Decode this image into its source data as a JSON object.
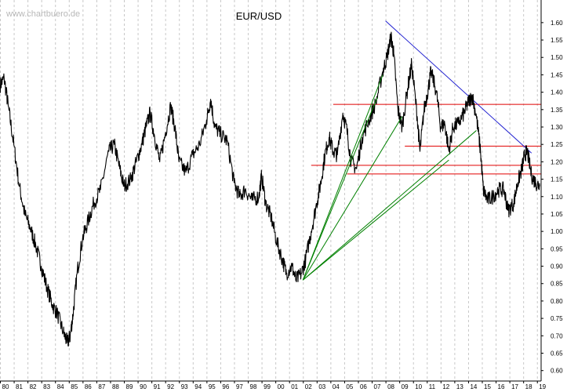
{
  "watermark": "www.chartbuero.de",
  "colors": {
    "background": "#ffffff",
    "price": "#000000",
    "grid": "#c8c8c8",
    "support_resistance": "#e00000",
    "downtrend": "#2020d0",
    "fan": "#008000"
  },
  "chart_data": {
    "type": "line",
    "title": "EUR/USD",
    "xlabel": "",
    "ylabel": "",
    "x_ticks": [
      "80",
      "81",
      "82",
      "83",
      "84",
      "85",
      "86",
      "87",
      "88",
      "89",
      "90",
      "91",
      "92",
      "93",
      "94",
      "95",
      "96",
      "97",
      "98",
      "99",
      "00",
      "01",
      "02",
      "03",
      "04",
      "05",
      "06",
      "07",
      "08",
      "09",
      "10",
      "11",
      "12",
      "13",
      "14",
      "15",
      "16",
      "17",
      "18",
      "19"
    ],
    "y_ticks": [
      "0.60",
      "0.65",
      "0.70",
      "0.75",
      "0.80",
      "0.85",
      "0.90",
      "0.95",
      "1.00",
      "1.05",
      "1.10",
      "1.15",
      "1.20",
      "1.25",
      "1.30",
      "1.35",
      "1.40",
      "1.45",
      "1.50",
      "1.55",
      "1.60"
    ],
    "xlim": [
      1980,
      2019.3
    ],
    "ylim": [
      0.57,
      1.665
    ],
    "grid": true,
    "y_axis_position": "right",
    "series": [
      {
        "x": [
          1980.0,
          1980.3,
          1980.6,
          1981.0,
          1981.4,
          1981.8,
          1982.2,
          1982.6,
          1983.0,
          1983.4,
          1983.8,
          1984.2,
          1984.6,
          1984.9,
          1985.1,
          1985.3,
          1985.6,
          1986.0,
          1986.4,
          1986.8,
          1987.3,
          1987.9,
          1988.3,
          1988.7,
          1989.0,
          1989.5,
          1989.9,
          1990.3,
          1990.6,
          1990.9,
          1991.2,
          1991.6,
          1992.0,
          1992.4,
          1992.7,
          1993.0,
          1993.5,
          1994.0,
          1994.5,
          1995.0,
          1995.3,
          1995.6,
          1996.0,
          1996.5,
          1997.0,
          1997.4,
          1997.8,
          1998.3,
          1998.8,
          1999.0,
          1999.3,
          1999.7,
          2000.1,
          2000.5,
          2000.8,
          2001.2,
          2001.5,
          2001.9,
          2002.2,
          2002.6,
          2003.0,
          2003.3,
          2003.6,
          2003.9,
          2004.2,
          2004.5,
          2004.9,
          2005.2,
          2005.5,
          2005.9,
          2006.3,
          2006.8,
          2007.3,
          2007.8,
          2008.1,
          2008.4,
          2008.6,
          2008.9,
          2009.2,
          2009.6,
          2009.9,
          2010.3,
          2010.5,
          2010.8,
          2011.1,
          2011.3,
          2011.7,
          2012.0,
          2012.3,
          2012.6,
          2012.9,
          2013.3,
          2013.7,
          2014.0,
          2014.3,
          2014.6,
          2014.9,
          2015.1,
          2015.4,
          2015.8,
          2016.2,
          2016.6,
          2016.9,
          2017.3,
          2017.6,
          2017.9,
          2018.1,
          2018.3,
          2018.6,
          2018.9,
          2019.2
        ],
        "values": [
          1.42,
          1.44,
          1.36,
          1.25,
          1.13,
          1.05,
          1.01,
          0.96,
          0.9,
          0.84,
          0.79,
          0.76,
          0.71,
          0.68,
          0.7,
          0.76,
          0.88,
          0.98,
          1.03,
          1.08,
          1.12,
          1.23,
          1.25,
          1.18,
          1.13,
          1.15,
          1.2,
          1.25,
          1.3,
          1.34,
          1.28,
          1.2,
          1.28,
          1.36,
          1.3,
          1.2,
          1.17,
          1.22,
          1.25,
          1.32,
          1.38,
          1.3,
          1.28,
          1.26,
          1.14,
          1.1,
          1.12,
          1.09,
          1.1,
          1.16,
          1.08,
          1.04,
          0.97,
          0.92,
          0.88,
          0.9,
          0.86,
          0.88,
          0.92,
          1.0,
          1.08,
          1.14,
          1.22,
          1.27,
          1.23,
          1.22,
          1.34,
          1.29,
          1.2,
          1.18,
          1.27,
          1.32,
          1.37,
          1.46,
          1.5,
          1.56,
          1.51,
          1.35,
          1.3,
          1.41,
          1.48,
          1.33,
          1.23,
          1.35,
          1.41,
          1.46,
          1.4,
          1.3,
          1.31,
          1.23,
          1.3,
          1.31,
          1.34,
          1.37,
          1.39,
          1.33,
          1.23,
          1.12,
          1.09,
          1.1,
          1.12,
          1.12,
          1.06,
          1.08,
          1.14,
          1.18,
          1.22,
          1.23,
          1.16,
          1.14,
          1.13
        ]
      }
    ],
    "annotations": {
      "horizontal_lines": [
        {
          "y": 1.365,
          "x_from": 2004.2,
          "x_to": 2019.3
        },
        {
          "y": 1.245,
          "x_from": 2009.4,
          "x_to": 2019.3
        },
        {
          "y": 1.19,
          "x_from": 2002.6,
          "x_to": 2019.3
        },
        {
          "y": 1.165,
          "x_from": 2005.2,
          "x_to": 2019.3
        }
      ],
      "trend_lines": [
        {
          "x1": 2008.0,
          "y1": 1.605,
          "x2": 2018.6,
          "y2": 1.225
        }
      ],
      "fan_lines": {
        "origin": [
          2002.0,
          0.86
        ],
        "targets": [
          [
            2007.4,
            1.385
          ],
          [
            2007.8,
            1.45
          ],
          [
            2009.2,
            1.33
          ],
          [
            2014.6,
            1.29
          ],
          [
            2012.6,
            1.205
          ]
        ]
      }
    }
  }
}
